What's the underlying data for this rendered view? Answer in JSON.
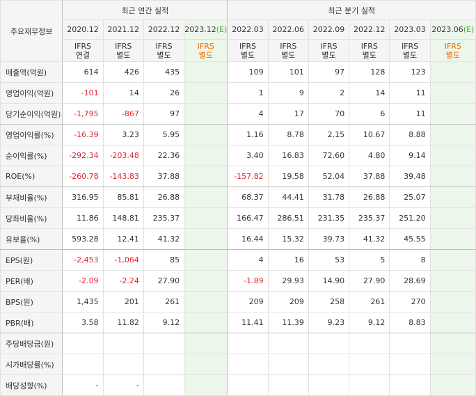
{
  "header": {
    "row_label_title": "주요재무정보",
    "annual_group": "최근 연간 실적",
    "quarter_group": "최근 분기 실적",
    "annual_periods": [
      {
        "period": "2020.12",
        "est": "",
        "ifrs": "IFRS",
        "basis": "연결"
      },
      {
        "period": "2021.12",
        "est": "",
        "ifrs": "IFRS",
        "basis": "별도"
      },
      {
        "period": "2022.12",
        "est": "",
        "ifrs": "IFRS",
        "basis": "별도"
      },
      {
        "period": "2023.12",
        "est": "(E)",
        "ifrs": "IFRS",
        "basis": "별도"
      }
    ],
    "quarter_periods": [
      {
        "period": "2022.03",
        "est": "",
        "ifrs": "IFRS",
        "basis": "별도"
      },
      {
        "period": "2022.06",
        "est": "",
        "ifrs": "IFRS",
        "basis": "별도"
      },
      {
        "period": "2022.09",
        "est": "",
        "ifrs": "IFRS",
        "basis": "별도"
      },
      {
        "period": "2022.12",
        "est": "",
        "ifrs": "IFRS",
        "basis": "별도"
      },
      {
        "period": "2023.03",
        "est": "",
        "ifrs": "IFRS",
        "basis": "별도"
      },
      {
        "period": "2023.06",
        "est": "(E)",
        "ifrs": "IFRS",
        "basis": "별도"
      }
    ]
  },
  "rows": [
    {
      "label": "매출액(억원)",
      "annual": [
        "614",
        "426",
        "435",
        ""
      ],
      "quarter": [
        "109",
        "101",
        "97",
        "128",
        "123",
        ""
      ]
    },
    {
      "label": "영업이익(억원)",
      "annual": [
        "-101",
        "14",
        "26",
        ""
      ],
      "quarter": [
        "1",
        "9",
        "2",
        "14",
        "11",
        ""
      ]
    },
    {
      "label": "당기순이익(억원)",
      "annual": [
        "-1,795",
        "-867",
        "97",
        ""
      ],
      "quarter": [
        "4",
        "17",
        "70",
        "6",
        "11",
        ""
      ]
    },
    {
      "label": "영업이익률(%)",
      "annual": [
        "-16.39",
        "3.23",
        "5.95",
        ""
      ],
      "quarter": [
        "1.16",
        "8.78",
        "2.15",
        "10.67",
        "8.88",
        ""
      ]
    },
    {
      "label": "순이익률(%)",
      "annual": [
        "-292.34",
        "-203.48",
        "22.36",
        ""
      ],
      "quarter": [
        "3.40",
        "16.83",
        "72.60",
        "4.80",
        "9.14",
        ""
      ]
    },
    {
      "label": "ROE(%)",
      "annual": [
        "-260.78",
        "-143.83",
        "37.88",
        ""
      ],
      "quarter": [
        "-157.82",
        "19.58",
        "52.04",
        "37.88",
        "39.48",
        ""
      ]
    },
    {
      "label": "부채비율(%)",
      "annual": [
        "316.95",
        "85.81",
        "26.88",
        ""
      ],
      "quarter": [
        "68.37",
        "44.41",
        "31.78",
        "26.88",
        "25.07",
        ""
      ]
    },
    {
      "label": "당좌비율(%)",
      "annual": [
        "11.86",
        "148.81",
        "235.37",
        ""
      ],
      "quarter": [
        "166.47",
        "286.51",
        "231.35",
        "235.37",
        "251.20",
        ""
      ]
    },
    {
      "label": "유보율(%)",
      "annual": [
        "593.28",
        "12.41",
        "41.32",
        ""
      ],
      "quarter": [
        "16.44",
        "15.32",
        "39.73",
        "41.32",
        "45.55",
        ""
      ]
    },
    {
      "label": "EPS(원)",
      "annual": [
        "-2,453",
        "-1,064",
        "85",
        ""
      ],
      "quarter": [
        "4",
        "16",
        "53",
        "5",
        "8",
        ""
      ]
    },
    {
      "label": "PER(배)",
      "annual": [
        "-2.09",
        "-2.24",
        "27.90",
        ""
      ],
      "quarter": [
        "-1.89",
        "29.93",
        "14.90",
        "27.90",
        "28.69",
        ""
      ]
    },
    {
      "label": "BPS(원)",
      "annual": [
        "1,435",
        "201",
        "261",
        ""
      ],
      "quarter": [
        "209",
        "209",
        "258",
        "261",
        "270",
        ""
      ]
    },
    {
      "label": "PBR(배)",
      "annual": [
        "3.58",
        "11.82",
        "9.12",
        ""
      ],
      "quarter": [
        "11.41",
        "11.39",
        "9.23",
        "9.12",
        "8.83",
        ""
      ]
    },
    {
      "label": "주당배당금(원)",
      "annual": [
        "",
        "",
        "",
        ""
      ],
      "quarter": [
        "",
        "",
        "",
        "",
        "",
        ""
      ]
    },
    {
      "label": "시가배당률(%)",
      "annual": [
        "",
        "",
        "",
        ""
      ],
      "quarter": [
        "",
        "",
        "",
        "",
        "",
        ""
      ]
    },
    {
      "label": "배당성향(%)",
      "annual": [
        "-",
        "-",
        "",
        ""
      ],
      "quarter": [
        "",
        "",
        "",
        "",
        "",
        ""
      ]
    }
  ],
  "colors": {
    "header_bg": "#f5f5f5",
    "estimate_bg": "#edf6ea",
    "ifrs_text": "#f06a00",
    "negative_text": "#e0252d",
    "estimate_mark": "#42a73a"
  }
}
